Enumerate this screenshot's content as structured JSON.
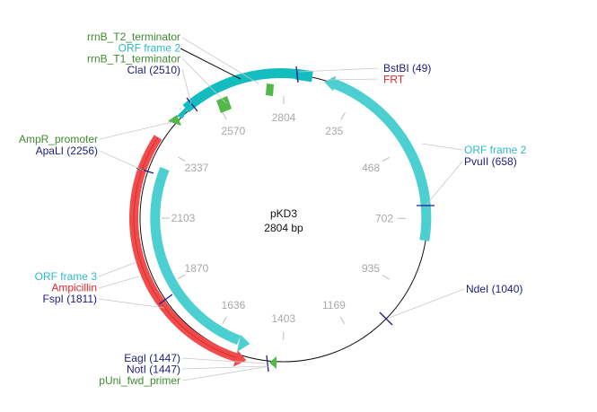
{
  "plasmid": {
    "name": "pKD3",
    "length_label": "2804 bp",
    "length_bp": 2804
  },
  "colors": {
    "backbone": "#111111",
    "orf": "#4ccfd0",
    "orf_dark": "#12bcbf",
    "ampicillin": "#f24b4b",
    "ampicillin_edge": "#c41e1e",
    "green_feature": "#52b847",
    "enzyme": "#1c1c8f",
    "tick": "#bdbdbd",
    "leader": "#c8c8c8",
    "label_green": "#3d8a2e",
    "label_cyan": "#2fb8c7",
    "label_red": "#e0282e",
    "label_navy": "#1d1d7a"
  },
  "ticks": [
    {
      "text": "235",
      "bp": 235
    },
    {
      "text": "468",
      "bp": 468
    },
    {
      "text": "702",
      "bp": 702
    },
    {
      "text": "935",
      "bp": 935
    },
    {
      "text": "1169",
      "bp": 1169
    },
    {
      "text": "1403",
      "bp": 1403
    },
    {
      "text": "1636",
      "bp": 1636
    },
    {
      "text": "1870",
      "bp": 1870
    },
    {
      "text": "2103",
      "bp": 2103
    },
    {
      "text": "2337",
      "bp": 2337
    },
    {
      "text": "2570",
      "bp": 2570
    },
    {
      "text": "2804",
      "bp": 2804
    }
  ],
  "enzymes": [
    {
      "name": "BstBI (49)",
      "bp": 49
    },
    {
      "name": "PvuII (658)",
      "bp": 658
    },
    {
      "name": "NdeI (1040)",
      "bp": 1040
    },
    {
      "name": "EagI (1447)",
      "bp": 1447
    },
    {
      "name": "NotI (1447)",
      "bp": 1447
    },
    {
      "name": "FspI (1811)",
      "bp": 1811
    },
    {
      "name": "ApaLI (2256)",
      "bp": 2256
    },
    {
      "name": "ClaI (2510)",
      "bp": 2510
    }
  ],
  "features": [
    {
      "name": "FRT",
      "type": "site"
    },
    {
      "name": "ORF frame 2",
      "type": "orf"
    },
    {
      "name": "ORF frame 3",
      "type": "orf"
    },
    {
      "name": "Ampicillin",
      "type": "cds"
    },
    {
      "name": "pUni_fwd_primer",
      "type": "primer"
    },
    {
      "name": "AmpR_promoter",
      "type": "promoter"
    },
    {
      "name": "rrnB_T1_terminator",
      "type": "terminator"
    },
    {
      "name": "rrnB_T2_terminator",
      "type": "terminator"
    }
  ],
  "labels": {
    "top_left": [
      {
        "text": "rrnB_T2_terminator",
        "color": "label_green"
      },
      {
        "text": "ORF frame 2",
        "color": "label_cyan"
      },
      {
        "text": "rrnB_T1_terminator",
        "color": "label_green"
      },
      {
        "text": "ClaI (2510)",
        "color": "label_navy"
      }
    ],
    "top_right": [
      {
        "text": "BstBI (49)",
        "color": "label_navy"
      },
      {
        "text": "FRT",
        "color": "label_red"
      }
    ],
    "right_mid": [
      {
        "text": "ORF frame 2",
        "color": "label_cyan"
      },
      {
        "text": "PvuII (658)",
        "color": "label_navy"
      }
    ],
    "right_low": [
      {
        "text": "NdeI (1040)",
        "color": "label_navy"
      }
    ],
    "left_mid": [
      {
        "text": "AmpR_promoter",
        "color": "label_green"
      },
      {
        "text": "ApaLI (2256)",
        "color": "label_navy"
      }
    ],
    "left_low": [
      {
        "text": "ORF frame 3",
        "color": "label_cyan"
      },
      {
        "text": "Ampicillin",
        "color": "label_red"
      },
      {
        "text": "FspI (1811)",
        "color": "label_navy"
      }
    ],
    "bottom_left": [
      {
        "text": "EagI (1447)",
        "color": "label_navy"
      },
      {
        "text": "NotI (1447)",
        "color": "label_navy"
      },
      {
        "text": "pUni_fwd_primer",
        "color": "label_green"
      }
    ]
  }
}
